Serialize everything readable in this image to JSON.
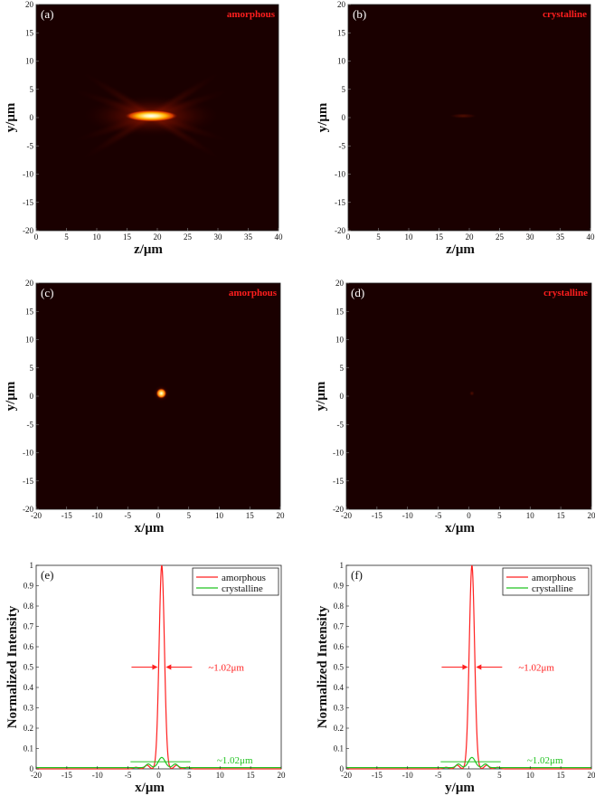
{
  "chart_data": [
    {
      "panel_label": "(a)",
      "type": "heatmap",
      "material": "amorphous",
      "xlabel": "z/μm",
      "ylabel": "y/μm",
      "xlim": [
        0,
        40
      ],
      "ylim": [
        -20,
        20
      ],
      "xticks": [
        "0",
        "5",
        "10",
        "15",
        "20",
        "25",
        "30",
        "35",
        "40"
      ],
      "yticks": [
        "20",
        "15",
        "10",
        "5",
        "0",
        "-5",
        "-10",
        "-15",
        "-20"
      ],
      "focus": {
        "z": 19,
        "y": 0.3
      },
      "peak_intensity": 1.0,
      "colormap": "hot"
    },
    {
      "panel_label": "(b)",
      "type": "heatmap",
      "material": "crystalline",
      "xlabel": "z/μm",
      "ylabel": "y/μm",
      "xlim": [
        0,
        40
      ],
      "ylim": [
        -20,
        20
      ],
      "xticks": [
        "0",
        "5",
        "10",
        "15",
        "20",
        "25",
        "30",
        "35",
        "40"
      ],
      "yticks": [
        "20",
        "15",
        "10",
        "5",
        "0",
        "-5",
        "-10",
        "-15",
        "-20"
      ],
      "focus": {
        "z": 19,
        "y": 0.3
      },
      "peak_intensity": 0.05,
      "colormap": "hot"
    },
    {
      "panel_label": "(c)",
      "type": "heatmap",
      "material": "amorphous",
      "xlabel": "x/μm",
      "ylabel": "y/μm",
      "xlim": [
        -20,
        20
      ],
      "ylim": [
        -20,
        20
      ],
      "xticks": [
        "-20",
        "-15",
        "-10",
        "-5",
        "0",
        "5",
        "10",
        "15",
        "20"
      ],
      "yticks": [
        "20",
        "15",
        "10",
        "5",
        "0",
        "-5",
        "-10",
        "-15",
        "-20"
      ],
      "focus": {
        "x": 0.5,
        "y": 0.5
      },
      "peak_intensity": 1.0,
      "colormap": "hot"
    },
    {
      "panel_label": "(d)",
      "type": "heatmap",
      "material": "crystalline",
      "xlabel": "x/μm",
      "ylabel": "y/μm",
      "xlim": [
        -20,
        20
      ],
      "ylim": [
        -20,
        20
      ],
      "xticks": [
        "-20",
        "-15",
        "-10",
        "-5",
        "0",
        "5",
        "10",
        "15",
        "20"
      ],
      "yticks": [
        "20",
        "15",
        "10",
        "5",
        "0",
        "-5",
        "-10",
        "-15",
        "-20"
      ],
      "focus": {
        "x": 0.5,
        "y": 0.5
      },
      "peak_intensity": 0.05,
      "colormap": "hot"
    },
    {
      "panel_label": "(e)",
      "type": "line",
      "xlabel": "x/μm",
      "ylabel": "Normalized Intensity",
      "xlim": [
        -20,
        20
      ],
      "ylim": [
        0,
        1
      ],
      "xticks": [
        "-20",
        "-15",
        "-10",
        "-5",
        "0",
        "5",
        "10",
        "15",
        "20"
      ],
      "yticks": [
        "1",
        "0.9",
        "0.8",
        "0.7",
        "0.6",
        "0.5",
        "0.4",
        "0.3",
        "0.2",
        "0.1",
        "0"
      ],
      "legend": "top-right",
      "series": [
        {
          "name": "amorphous",
          "color": "#ff2020",
          "peak": 1.0,
          "center": 0.5
        },
        {
          "name": "crystalline",
          "color": "#22c422",
          "peak": 0.05,
          "center": 0.5
        }
      ],
      "annotations": [
        "~1.02μm",
        "~1.02μm"
      ],
      "fwhm_y": 0.5
    },
    {
      "panel_label": "(f)",
      "type": "line",
      "xlabel": "y/μm",
      "ylabel": "Normalized Intensity",
      "xlim": [
        -20,
        20
      ],
      "ylim": [
        0,
        1
      ],
      "xticks": [
        "-20",
        "-15",
        "-10",
        "-5",
        "0",
        "5",
        "10",
        "15",
        "20"
      ],
      "yticks": [
        "1",
        "0.9",
        "0.8",
        "0.7",
        "0.6",
        "0.5",
        "0.4",
        "0.3",
        "0.2",
        "0.1",
        "0"
      ],
      "legend": "top-right",
      "series": [
        {
          "name": "amorphous",
          "color": "#ff2020",
          "peak": 1.0,
          "center": 0.5
        },
        {
          "name": "crystalline",
          "color": "#22c422",
          "peak": 0.05,
          "center": 0.5
        }
      ],
      "annotations": [
        "~1.02μm",
        "~1.02μm"
      ],
      "fwhm_y": 0.5
    }
  ]
}
